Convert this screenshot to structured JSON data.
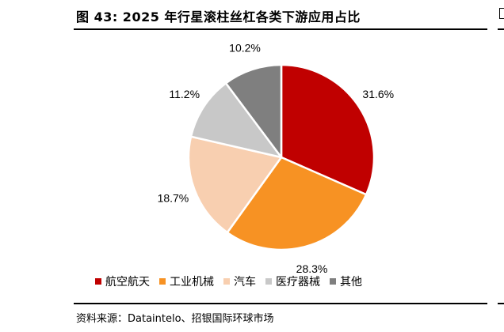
{
  "figure": {
    "title": "图 43: 2025 年行星滚柱丝杠各类下游应用占比",
    "source": "资料来源：Dataintelo、招银国际环球市场"
  },
  "chart_data": {
    "type": "pie",
    "title": "",
    "categories": [
      "航空航天",
      "工业机械",
      "汽车",
      "医疗器械",
      "其他"
    ],
    "values": [
      31.6,
      28.3,
      18.7,
      11.2,
      10.2
    ],
    "value_labels": [
      "31.6%",
      "28.3%",
      "18.7%",
      "11.2%",
      "10.2%"
    ],
    "colors": [
      "#C00000",
      "#F79223",
      "#F8CFB0",
      "#C8C8C8",
      "#7F7F7F"
    ],
    "start_angle_deg": 0,
    "direction": "clockwise",
    "legend_position": "bottom"
  }
}
